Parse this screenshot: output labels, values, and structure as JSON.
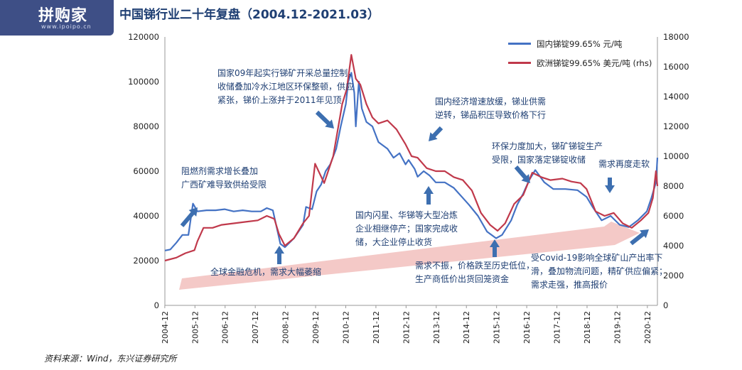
{
  "title": "中国锑行业二十年复盘（2004.12-2021.03）",
  "logo": {
    "text": "拼购家",
    "url": "www.ipoipo.cn"
  },
  "source": "资料来源：Wind，东兴证券研究所",
  "annotations": [
    {
      "lines": [
        "阻燃剂需求增长叠加",
        "广西矿难导致供给受限"
      ]
    },
    {
      "lines": [
        "国家09年起实行锑矿开采总量控制，",
        "收储叠加冷水江地区环保整顿，供应",
        "紧张，锑价上涨并于2011年见顶"
      ]
    },
    {
      "lines": [
        "国内经济增速放缓，锑业供需",
        "逆转，锑品积压导致价格下行"
      ]
    },
    {
      "lines": [
        "环保力度加大，锑矿锑锭生产",
        "受限，国家落定锑锭收储"
      ]
    },
    {
      "lines": [
        "需求再度走软"
      ]
    },
    {
      "lines": [
        "国内闪星、华锑等大型冶炼",
        "企业相继停产；国家完成收",
        "储，大企业停止收货"
      ]
    },
    {
      "lines": [
        "全球金融危机，需求大幅萎缩"
      ]
    },
    {
      "lines": [
        "需求不振，价格跌至历史低位，",
        "生产商低价出货回笼资金"
      ]
    },
    {
      "lines": [
        "受Covid-19影响全球矿山产出率下",
        "滑，叠加物流问题，精矿供应偏紧；",
        "需求走强，推高报价"
      ]
    }
  ],
  "colors": {
    "domestic": "#4472c4",
    "europe": "#c0394b",
    "arrow": "#3d6fb0",
    "trend": "#f4c9c7",
    "text": "#1f3f73"
  },
  "chart_data": {
    "type": "line",
    "x_ticks": [
      "2004-12",
      "2005-12",
      "2006-12",
      "2007-12",
      "2008-12",
      "2009-12",
      "2010-12",
      "2011-12",
      "2012-12",
      "2013-12",
      "2014-12",
      "2015-12",
      "2016-12",
      "2017-12",
      "2018-12",
      "2019-12",
      "2020-12"
    ],
    "x_range": [
      2004.92,
      2021.25
    ],
    "y_left": {
      "min": 0,
      "max": 120000,
      "ticks": [
        0,
        20000,
        40000,
        60000,
        80000,
        100000,
        120000
      ]
    },
    "y_right": {
      "min": 0,
      "max": 18000,
      "ticks": [
        0,
        2000,
        4000,
        6000,
        8000,
        10000,
        12000,
        14000,
        16000,
        18000
      ]
    },
    "series": [
      {
        "name": "国内锑锭99.65% 元/吨",
        "axis": "left",
        "color": "#4472c4",
        "points": [
          [
            2004.92,
            24500
          ],
          [
            2005.1,
            25000
          ],
          [
            2005.3,
            28000
          ],
          [
            2005.5,
            31500
          ],
          [
            2005.7,
            31500
          ],
          [
            2005.85,
            45500
          ],
          [
            2006.0,
            42000
          ],
          [
            2006.3,
            42500
          ],
          [
            2006.6,
            42500
          ],
          [
            2006.9,
            43000
          ],
          [
            2007.2,
            42000
          ],
          [
            2007.5,
            42500
          ],
          [
            2007.8,
            42000
          ],
          [
            2008.1,
            42000
          ],
          [
            2008.3,
            43500
          ],
          [
            2008.5,
            42500
          ],
          [
            2008.75,
            27500
          ],
          [
            2008.9,
            26000
          ],
          [
            2009.2,
            30000
          ],
          [
            2009.5,
            36000
          ],
          [
            2009.6,
            44000
          ],
          [
            2009.8,
            43000
          ],
          [
            2009.95,
            51000
          ],
          [
            2010.1,
            54000
          ],
          [
            2010.25,
            60000
          ],
          [
            2010.4,
            63000
          ],
          [
            2010.6,
            70000
          ],
          [
            2010.75,
            80000
          ],
          [
            2010.92,
            90000
          ],
          [
            2011.0,
            100000
          ],
          [
            2011.1,
            104000
          ],
          [
            2011.2,
            95000
          ],
          [
            2011.25,
            80000
          ],
          [
            2011.35,
            100000
          ],
          [
            2011.45,
            88000
          ],
          [
            2011.6,
            82000
          ],
          [
            2011.8,
            80000
          ],
          [
            2012.0,
            73000
          ],
          [
            2012.3,
            70000
          ],
          [
            2012.5,
            66000
          ],
          [
            2012.7,
            68000
          ],
          [
            2012.9,
            63000
          ],
          [
            2013.0,
            65000
          ],
          [
            2013.2,
            61000
          ],
          [
            2013.3,
            57500
          ],
          [
            2013.5,
            60000
          ],
          [
            2013.7,
            58000
          ],
          [
            2013.9,
            55000
          ],
          [
            2014.2,
            55000
          ],
          [
            2014.5,
            52500
          ],
          [
            2014.8,
            48000
          ],
          [
            2015.0,
            45000
          ],
          [
            2015.3,
            40000
          ],
          [
            2015.6,
            33000
          ],
          [
            2015.9,
            30000
          ],
          [
            2016.1,
            31500
          ],
          [
            2016.4,
            38000
          ],
          [
            2016.6,
            45000
          ],
          [
            2016.8,
            50000
          ],
          [
            2017.0,
            56000
          ],
          [
            2017.2,
            60500
          ],
          [
            2017.5,
            55000
          ],
          [
            2017.8,
            52000
          ],
          [
            2018.2,
            52000
          ],
          [
            2018.6,
            51500
          ],
          [
            2018.9,
            48500
          ],
          [
            2019.1,
            44000
          ],
          [
            2019.4,
            38000
          ],
          [
            2019.7,
            40000
          ],
          [
            2020.0,
            36000
          ],
          [
            2020.3,
            35000
          ],
          [
            2020.6,
            38000
          ],
          [
            2020.9,
            42000
          ],
          [
            2021.05,
            48000
          ],
          [
            2021.2,
            55000
          ],
          [
            2021.25,
            66000
          ]
        ]
      },
      {
        "name": "欧洲锑锭99.65% 美元/吨 (rhs)",
        "axis": "right",
        "color": "#c0394b",
        "points": [
          [
            2004.92,
            3000
          ],
          [
            2005.3,
            3200
          ],
          [
            2005.6,
            3500
          ],
          [
            2005.9,
            3700
          ],
          [
            2006.0,
            4300
          ],
          [
            2006.2,
            5200
          ],
          [
            2006.5,
            5200
          ],
          [
            2006.8,
            5400
          ],
          [
            2007.2,
            5500
          ],
          [
            2007.6,
            5600
          ],
          [
            2008.0,
            5700
          ],
          [
            2008.3,
            6000
          ],
          [
            2008.55,
            5800
          ],
          [
            2008.7,
            4800
          ],
          [
            2008.9,
            4000
          ],
          [
            2009.2,
            4500
          ],
          [
            2009.5,
            5500
          ],
          [
            2009.7,
            6000
          ],
          [
            2009.9,
            9500
          ],
          [
            2010.2,
            8200
          ],
          [
            2010.5,
            10000
          ],
          [
            2010.8,
            13500
          ],
          [
            2010.95,
            14500
          ],
          [
            2011.1,
            16800
          ],
          [
            2011.25,
            15200
          ],
          [
            2011.4,
            14800
          ],
          [
            2011.6,
            13500
          ],
          [
            2011.8,
            12600
          ],
          [
            2012.0,
            12200
          ],
          [
            2012.3,
            12400
          ],
          [
            2012.6,
            11800
          ],
          [
            2012.9,
            10800
          ],
          [
            2013.1,
            10000
          ],
          [
            2013.3,
            9900
          ],
          [
            2013.6,
            9200
          ],
          [
            2013.9,
            9000
          ],
          [
            2014.2,
            9000
          ],
          [
            2014.5,
            8600
          ],
          [
            2014.8,
            8400
          ],
          [
            2015.1,
            7700
          ],
          [
            2015.4,
            6200
          ],
          [
            2015.7,
            5400
          ],
          [
            2015.95,
            5000
          ],
          [
            2016.2,
            5500
          ],
          [
            2016.5,
            6800
          ],
          [
            2016.8,
            7400
          ],
          [
            2017.1,
            8900
          ],
          [
            2017.4,
            8600
          ],
          [
            2017.7,
            8400
          ],
          [
            2018.1,
            8500
          ],
          [
            2018.4,
            8300
          ],
          [
            2018.7,
            8200
          ],
          [
            2018.9,
            7800
          ],
          [
            2019.2,
            6300
          ],
          [
            2019.5,
            6000
          ],
          [
            2019.8,
            6200
          ],
          [
            2020.1,
            5500
          ],
          [
            2020.4,
            5200
          ],
          [
            2020.7,
            5700
          ],
          [
            2020.95,
            6200
          ],
          [
            2021.1,
            7200
          ],
          [
            2021.2,
            9000
          ],
          [
            2021.25,
            8000
          ]
        ]
      }
    ]
  }
}
